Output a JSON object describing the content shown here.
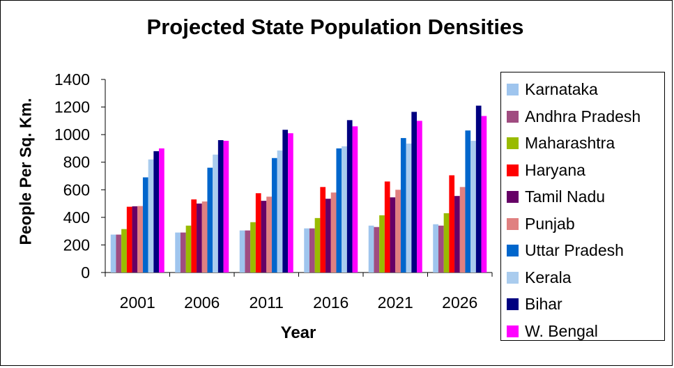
{
  "chart_data": {
    "type": "bar",
    "title": "Projected State Population Densities",
    "xlabel": "Year",
    "ylabel": "People Per Sq. Km.",
    "ylim": [
      0,
      1400
    ],
    "yticks": [
      0,
      200,
      400,
      600,
      800,
      1000,
      1200,
      1400
    ],
    "grid": false,
    "legend_position": "right",
    "categories": [
      "2001",
      "2006",
      "2011",
      "2016",
      "2021",
      "2026"
    ],
    "series": [
      {
        "name": "Karnataka",
        "color": "#9FC5EE",
        "values": [
          275,
          290,
          305,
          320,
          340,
          350
        ]
      },
      {
        "name": "Andhra Pradesh",
        "color": "#A04C80",
        "values": [
          275,
          290,
          305,
          320,
          330,
          340
        ]
      },
      {
        "name": "Maharashtra",
        "color": "#99BB00",
        "values": [
          315,
          340,
          365,
          395,
          415,
          430
        ]
      },
      {
        "name": "Haryana",
        "color": "#FF0000",
        "values": [
          477,
          530,
          575,
          620,
          660,
          705
        ]
      },
      {
        "name": "Tamil Nadu",
        "color": "#660066",
        "values": [
          480,
          500,
          520,
          535,
          545,
          555
        ]
      },
      {
        "name": "Punjab",
        "color": "#E08080",
        "values": [
          482,
          515,
          550,
          580,
          600,
          620
        ]
      },
      {
        "name": "Uttar Pradesh",
        "color": "#0066CC",
        "values": [
          690,
          760,
          830,
          900,
          975,
          1030
        ]
      },
      {
        "name": "Kerala",
        "color": "#AACCEE",
        "values": [
          820,
          855,
          885,
          915,
          935,
          955
        ]
      },
      {
        "name": "Bihar",
        "color": "#000080",
        "values": [
          880,
          960,
          1035,
          1105,
          1165,
          1210
        ]
      },
      {
        "name": "W. Bengal",
        "color": "#FF00FF",
        "values": [
          900,
          955,
          1010,
          1060,
          1100,
          1135
        ]
      }
    ]
  }
}
